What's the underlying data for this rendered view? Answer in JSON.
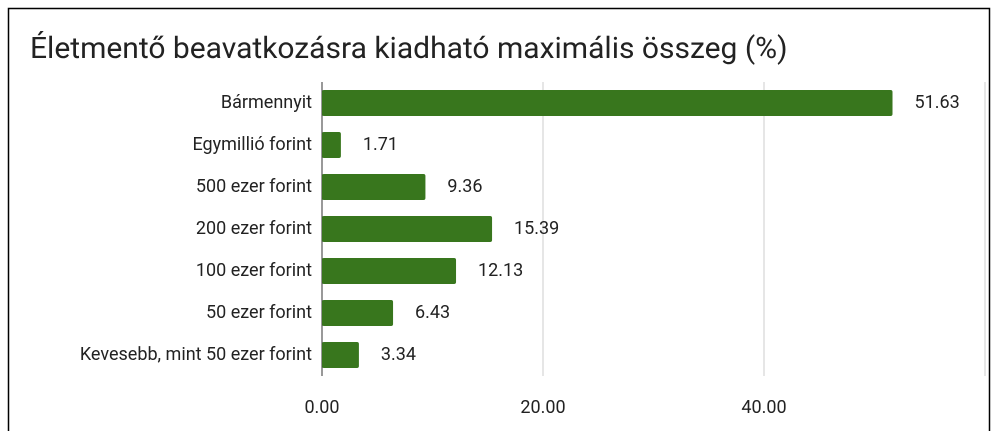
{
  "chart_data": {
    "type": "bar",
    "orientation": "horizontal",
    "title": "Életmentő beavatkozásra kiadható maximális összeg (%)",
    "categories": [
      "Bármennyit",
      "Egymillió forint",
      "500 ezer forint",
      "200 ezer forint",
      "100 ezer forint",
      "50 ezer forint",
      "Kevesebb, mint 50 ezer forint"
    ],
    "values": [
      51.63,
      1.71,
      9.36,
      15.39,
      12.13,
      6.43,
      3.34
    ],
    "color": "#38761d",
    "label_color": "#38761d",
    "xlim": [
      0,
      60
    ],
    "xticks": [
      {
        "value": 0,
        "label": "0.00"
      },
      {
        "value": 20,
        "label": "20.00"
      },
      {
        "value": 40,
        "label": "40.00"
      }
    ],
    "grid": true
  }
}
